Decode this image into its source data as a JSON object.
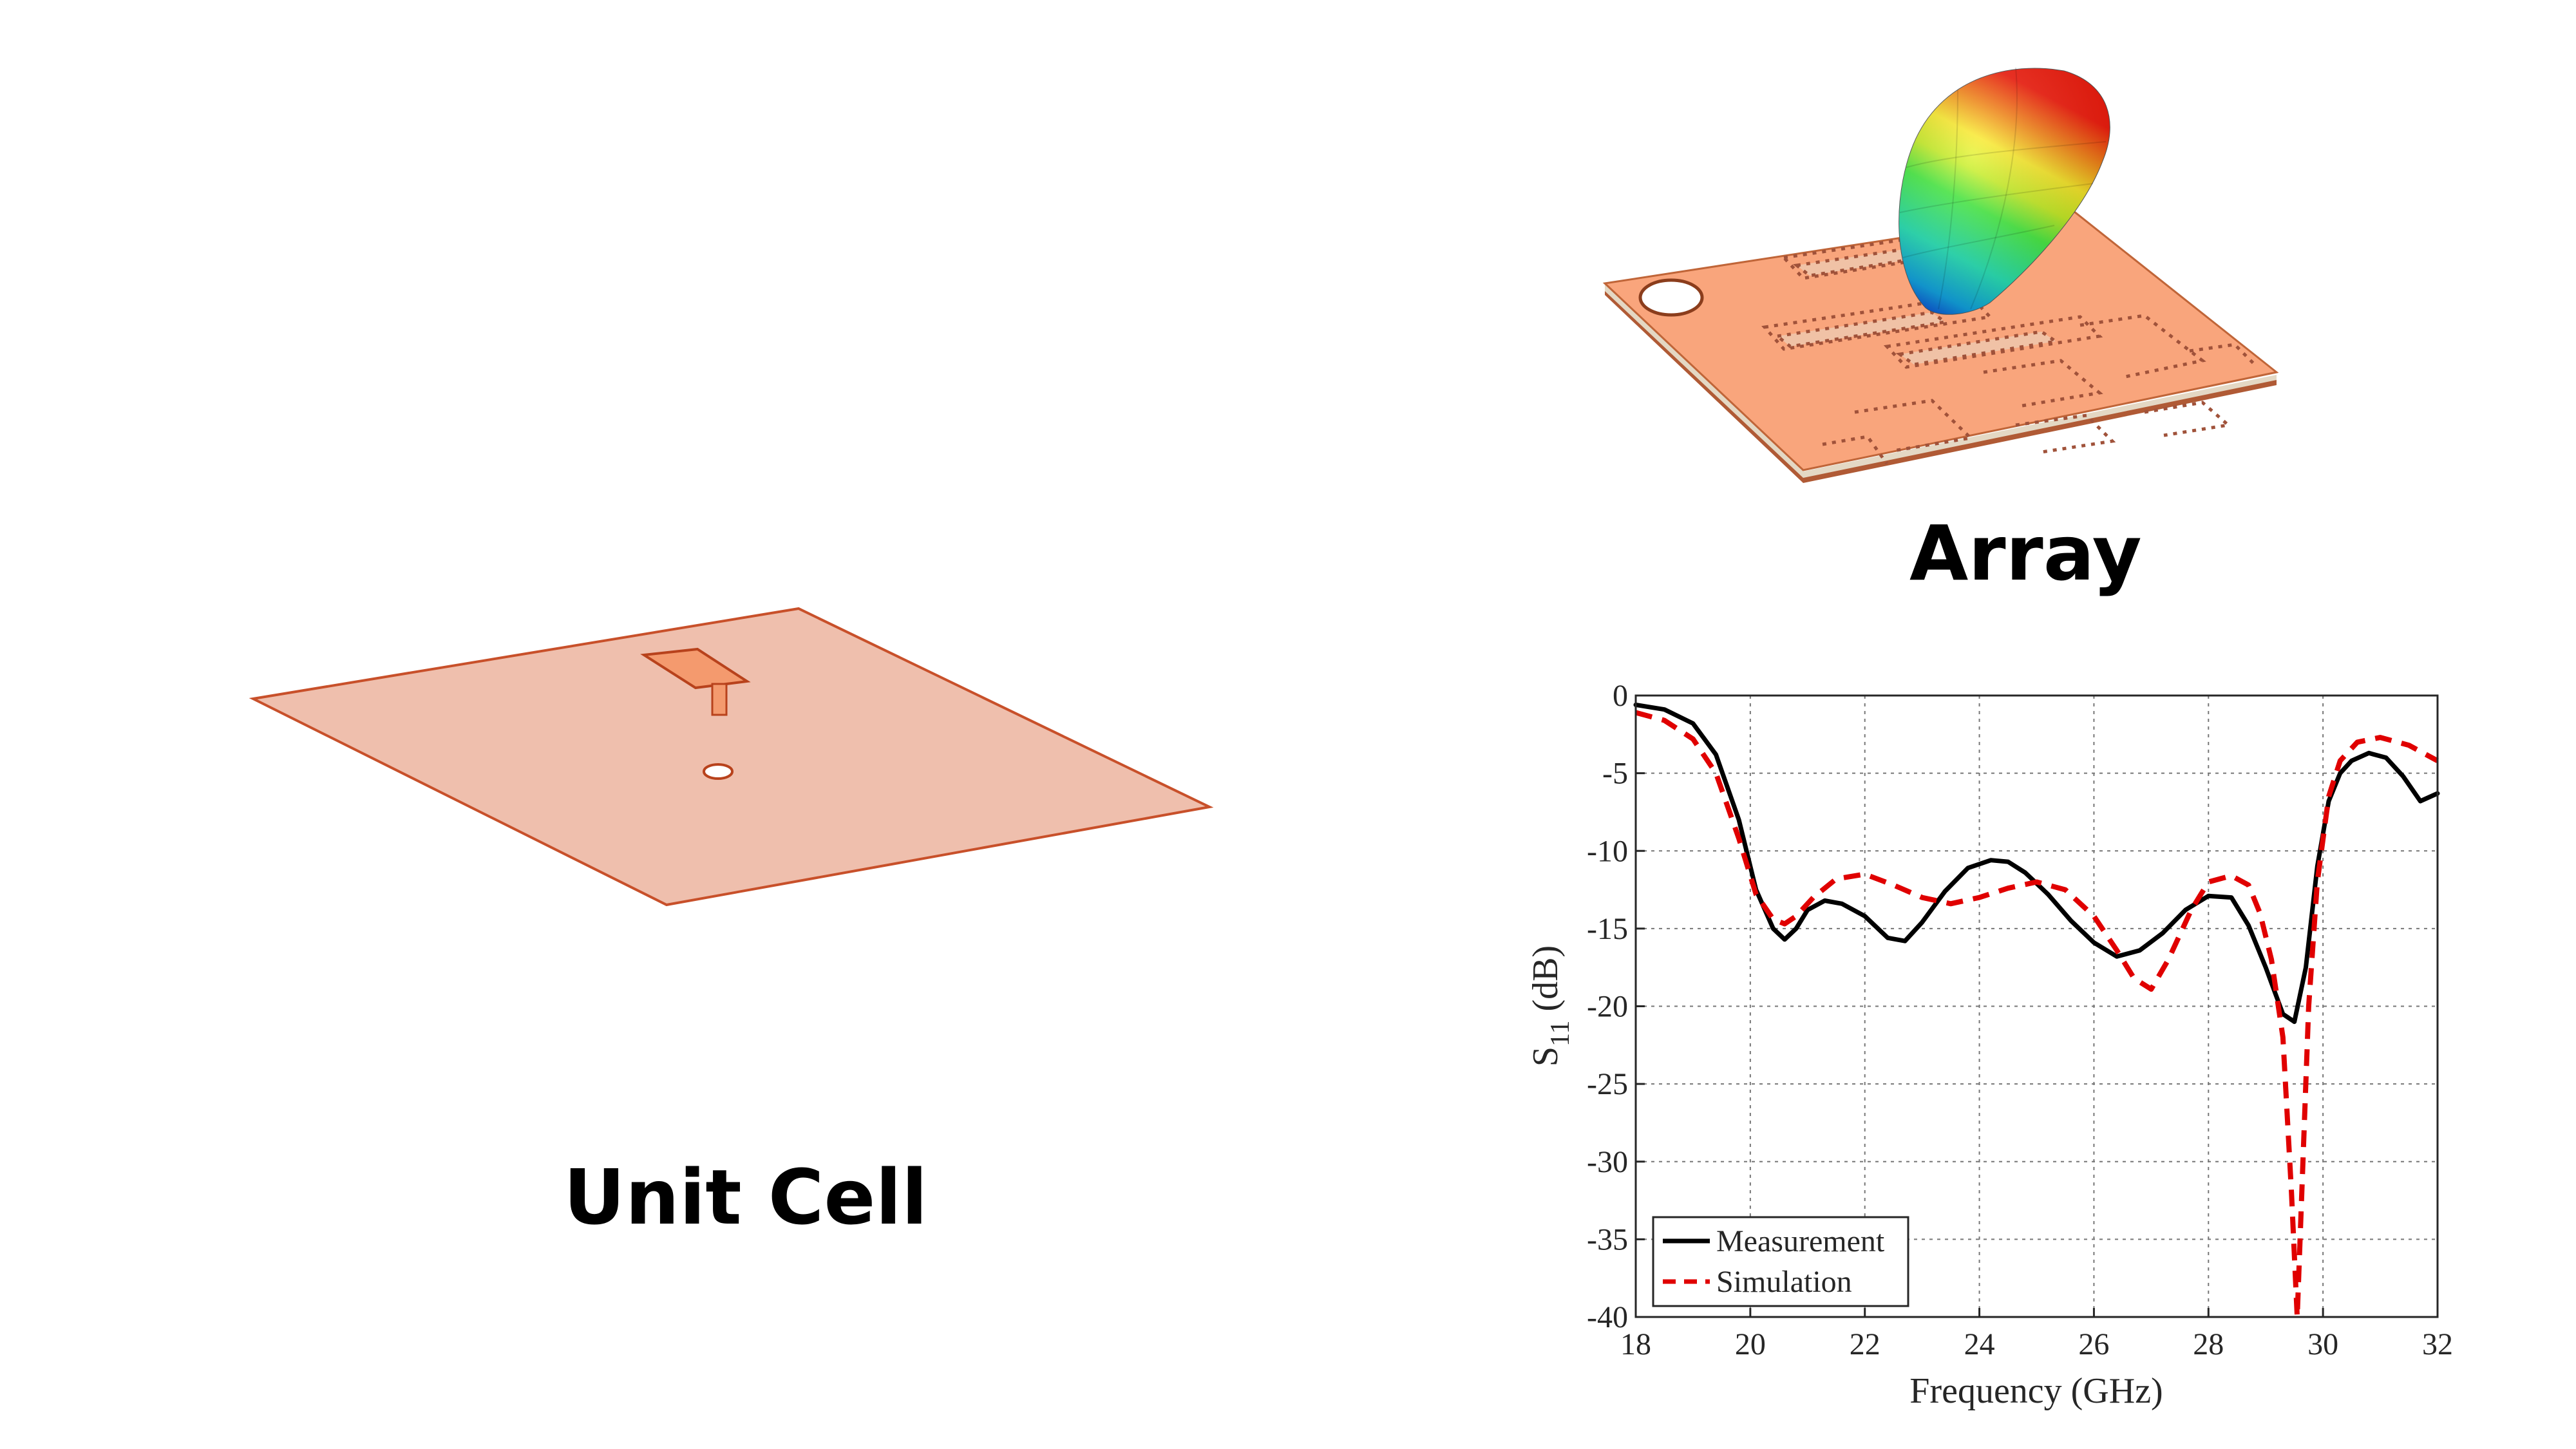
{
  "captions": {
    "unit_cell": "Unit Cell",
    "array": "Array"
  },
  "colors": {
    "copper": "#f9a57c",
    "copper_light": "#efbfad",
    "copper_edge": "#c8502a",
    "measurement": "#000000",
    "simulation": "#e00000",
    "grid": "#666666"
  },
  "chart_data": {
    "type": "line",
    "xlabel": "Frequency (GHz)",
    "ylabel": "S11 (dB)",
    "ylabel_main": "S",
    "ylabel_sub": "11",
    "ylabel_unit": "(dB)",
    "xlim": [
      18,
      32
    ],
    "ylim": [
      -40,
      0
    ],
    "xticks": [
      18,
      20,
      22,
      24,
      26,
      28,
      30,
      32
    ],
    "yticks": [
      0,
      -5,
      -10,
      -15,
      -20,
      -25,
      -30,
      -35,
      -40
    ],
    "grid": true,
    "legend_position": "bottom-left",
    "series": [
      {
        "name": "Measurement",
        "style": "solid",
        "color": "#000000",
        "x": [
          18,
          18.5,
          19,
          19.4,
          19.8,
          20.1,
          20.4,
          20.6,
          20.8,
          21.0,
          21.3,
          21.6,
          22.0,
          22.4,
          22.7,
          23.0,
          23.4,
          23.8,
          24.2,
          24.5,
          24.8,
          25.2,
          25.6,
          26.0,
          26.4,
          26.8,
          27.2,
          27.6,
          28.0,
          28.4,
          28.7,
          29.0,
          29.3,
          29.5,
          29.7,
          29.9,
          30.1,
          30.3,
          30.5,
          30.8,
          31.1,
          31.4,
          31.7,
          32.0
        ],
        "values": [
          -0.6,
          -0.9,
          -1.8,
          -3.8,
          -8.0,
          -12.5,
          -15.0,
          -15.7,
          -15.0,
          -13.8,
          -13.2,
          -13.4,
          -14.2,
          -15.6,
          -15.8,
          -14.6,
          -12.6,
          -11.1,
          -10.6,
          -10.7,
          -11.4,
          -12.8,
          -14.5,
          -15.9,
          -16.8,
          -16.4,
          -15.3,
          -13.8,
          -12.9,
          -13.0,
          -14.8,
          -17.5,
          -20.5,
          -21.0,
          -17.5,
          -11.0,
          -6.8,
          -5.0,
          -4.2,
          -3.7,
          -4.0,
          -5.2,
          -6.8,
          -6.3
        ]
      },
      {
        "name": "Simulation",
        "style": "dashed",
        "color": "#e00000",
        "x": [
          18,
          18.5,
          19,
          19.4,
          19.8,
          20.1,
          20.4,
          20.6,
          20.8,
          21.1,
          21.5,
          22.0,
          22.5,
          23.0,
          23.5,
          24.0,
          24.5,
          25.0,
          25.5,
          26.0,
          26.4,
          26.7,
          27.0,
          27.3,
          27.7,
          28.0,
          28.4,
          28.7,
          28.9,
          29.1,
          29.3,
          29.45,
          29.55,
          29.65,
          29.75,
          29.9,
          30.1,
          30.3,
          30.6,
          31.0,
          31.5,
          32.0
        ],
        "values": [
          -1.1,
          -1.6,
          -2.8,
          -5.0,
          -9.2,
          -12.8,
          -14.4,
          -14.7,
          -14.2,
          -13.0,
          -11.8,
          -11.5,
          -12.2,
          -13.0,
          -13.4,
          -13.0,
          -12.4,
          -12.0,
          -12.5,
          -14.2,
          -16.4,
          -18.2,
          -18.9,
          -17.0,
          -13.8,
          -12.0,
          -11.6,
          -12.2,
          -14.0,
          -17.0,
          -22.0,
          -32.0,
          -40.0,
          -30.0,
          -20.0,
          -12.0,
          -6.5,
          -4.2,
          -3.0,
          -2.7,
          -3.2,
          -4.2
        ]
      }
    ]
  }
}
